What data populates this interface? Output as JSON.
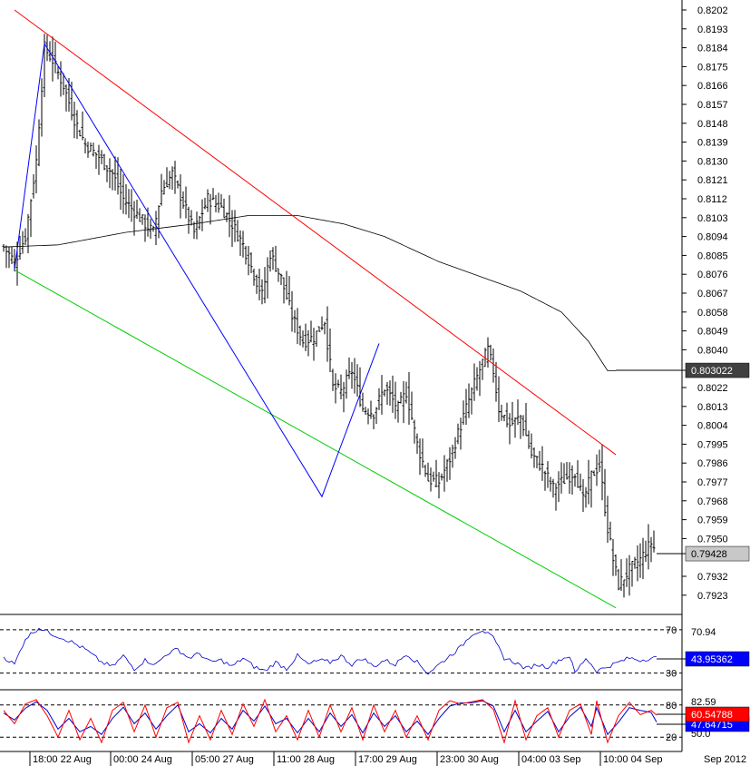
{
  "chart_data": [
    {
      "type": "candlestick",
      "panel": "price",
      "y_ticks": [
        "0.8202",
        "0.8193",
        "0.8184",
        "0.8175",
        "0.8166",
        "0.8157",
        "0.8148",
        "0.8139",
        "0.8130",
        "0.8121",
        "0.8112",
        "0.8103",
        "0.8094",
        "0.8085",
        "0.8076",
        "0.8067",
        "0.8058",
        "0.8049",
        "0.8040",
        "0.8022",
        "0.8013",
        "0.8004",
        "0.7995",
        "0.7986",
        "0.7977",
        "0.7968",
        "0.7959",
        "0.7950",
        "0.7932",
        "0.7923"
      ],
      "ylim": [
        0.7916,
        0.8207
      ],
      "x_ticks": [
        "18:00 22 Aug",
        "00:00 24 Aug",
        "05:00 27 Aug",
        "11:00 28 Aug",
        "17:00 29 Aug",
        "23:00 30 Aug",
        "04:00 03 Sep",
        "10:00 04 Sep"
      ],
      "x_corner_label": "Sep 2012",
      "ma_value_label": "0.803022",
      "price_value_label": "0.79428",
      "bar_count": 240,
      "close_keypoints": [
        [
          0,
          0.8089
        ],
        [
          4,
          0.8082
        ],
        [
          8,
          0.8094
        ],
        [
          12,
          0.813
        ],
        [
          15,
          0.8184
        ],
        [
          18,
          0.8178
        ],
        [
          22,
          0.8166
        ],
        [
          26,
          0.815
        ],
        [
          30,
          0.8138
        ],
        [
          35,
          0.8132
        ],
        [
          40,
          0.8124
        ],
        [
          44,
          0.8112
        ],
        [
          48,
          0.8106
        ],
        [
          52,
          0.81
        ],
        [
          55,
          0.8096
        ],
        [
          58,
          0.8116
        ],
        [
          62,
          0.8124
        ],
        [
          66,
          0.811
        ],
        [
          70,
          0.8096
        ],
        [
          75,
          0.8112
        ],
        [
          80,
          0.8108
        ],
        [
          84,
          0.81
        ],
        [
          88,
          0.809
        ],
        [
          92,
          0.8076
        ],
        [
          95,
          0.8066
        ],
        [
          98,
          0.8086
        ],
        [
          102,
          0.8074
        ],
        [
          106,
          0.8056
        ],
        [
          110,
          0.8044
        ],
        [
          114,
          0.8046
        ],
        [
          118,
          0.8054
        ],
        [
          121,
          0.8022
        ],
        [
          124,
          0.802
        ],
        [
          128,
          0.803
        ],
        [
          132,
          0.8012
        ],
        [
          136,
          0.801
        ],
        [
          140,
          0.8022
        ],
        [
          145,
          0.8012
        ],
        [
          148,
          0.802
        ],
        [
          152,
          0.7995
        ],
        [
          156,
          0.7978
        ],
        [
          160,
          0.7977
        ],
        [
          164,
          0.7988
        ],
        [
          168,
          0.8004
        ],
        [
          172,
          0.802
        ],
        [
          176,
          0.8034
        ],
        [
          178,
          0.804
        ],
        [
          180,
          0.803
        ],
        [
          182,
          0.8012
        ],
        [
          186,
          0.8004
        ],
        [
          190,
          0.8008
        ],
        [
          194,
          0.799
        ],
        [
          198,
          0.7984
        ],
        [
          202,
          0.7974
        ],
        [
          206,
          0.7978
        ],
        [
          210,
          0.7982
        ],
        [
          213,
          0.7968
        ],
        [
          216,
          0.798
        ],
        [
          219,
          0.7985
        ],
        [
          222,
          0.7955
        ],
        [
          224,
          0.794
        ],
        [
          226,
          0.7928
        ],
        [
          230,
          0.7935
        ],
        [
          234,
          0.794
        ],
        [
          238,
          0.7948
        ],
        [
          240,
          0.7943
        ]
      ],
      "moving_average": [
        [
          0,
          0.8089
        ],
        [
          20,
          0.809
        ],
        [
          45,
          0.8096
        ],
        [
          70,
          0.81
        ],
        [
          90,
          0.8104
        ],
        [
          108,
          0.8104
        ],
        [
          125,
          0.81
        ],
        [
          140,
          0.8094
        ],
        [
          160,
          0.8082
        ],
        [
          175,
          0.8075
        ],
        [
          190,
          0.8068
        ],
        [
          205,
          0.8058
        ],
        [
          215,
          0.8044
        ],
        [
          222,
          0.803
        ],
        [
          225,
          0.803
        ]
      ],
      "channel_upper": [
        [
          4,
          0.8202
        ],
        [
          225,
          0.799
        ]
      ],
      "channel_lower": [
        [
          4,
          0.8078
        ],
        [
          225,
          0.7917
        ]
      ],
      "zigzag": [
        [
          4,
          0.8078
        ],
        [
          15,
          0.8186
        ],
        [
          117,
          0.797
        ],
        [
          138,
          0.8043
        ]
      ],
      "colors": {
        "upper_channel": "#ff0000",
        "lower_channel": "#00cc00",
        "zigzag": "#0000ff",
        "moving_average": "#000000",
        "bars": "#000000",
        "ma_box": "#404040",
        "price_box": "#c8c8c8"
      }
    },
    {
      "type": "line",
      "panel": "rsi",
      "levels": [
        "70",
        "30"
      ],
      "level_values": [
        70,
        30
      ],
      "ylim": [
        18,
        80
      ],
      "max_label": "70.94",
      "value_label": "43.95362",
      "keypoints": [
        [
          0,
          45
        ],
        [
          4,
          38
        ],
        [
          8,
          62
        ],
        [
          13,
          72
        ],
        [
          18,
          66
        ],
        [
          24,
          60
        ],
        [
          30,
          52
        ],
        [
          36,
          40
        ],
        [
          40,
          36
        ],
        [
          44,
          46
        ],
        [
          48,
          34
        ],
        [
          52,
          42
        ],
        [
          56,
          38
        ],
        [
          60,
          48
        ],
        [
          64,
          52
        ],
        [
          68,
          44
        ],
        [
          72,
          48
        ],
        [
          76,
          40
        ],
        [
          80,
          42
        ],
        [
          84,
          36
        ],
        [
          88,
          44
        ],
        [
          92,
          36
        ],
        [
          96,
          32
        ],
        [
          100,
          40
        ],
        [
          104,
          34
        ],
        [
          108,
          46
        ],
        [
          112,
          38
        ],
        [
          116,
          42
        ],
        [
          120,
          40
        ],
        [
          124,
          46
        ],
        [
          128,
          38
        ],
        [
          132,
          44
        ],
        [
          136,
          36
        ],
        [
          140,
          42
        ],
        [
          144,
          38
        ],
        [
          148,
          48
        ],
        [
          152,
          40
        ],
        [
          156,
          30
        ],
        [
          160,
          38
        ],
        [
          164,
          46
        ],
        [
          168,
          54
        ],
        [
          172,
          66
        ],
        [
          176,
          70
        ],
        [
          180,
          62
        ],
        [
          184,
          44
        ],
        [
          188,
          40
        ],
        [
          192,
          34
        ],
        [
          196,
          38
        ],
        [
          200,
          36
        ],
        [
          204,
          42
        ],
        [
          208,
          46
        ],
        [
          210,
          30
        ],
        [
          214,
          44
        ],
        [
          218,
          32
        ],
        [
          222,
          36
        ],
        [
          226,
          40
        ],
        [
          230,
          44
        ],
        [
          234,
          42
        ],
        [
          238,
          44
        ],
        [
          240,
          44
        ]
      ],
      "color": "#0000cc",
      "value_box_color": "#0000ff"
    },
    {
      "type": "line",
      "panel": "stochastic",
      "levels": [
        "80",
        "20"
      ],
      "level_values": [
        80,
        20
      ],
      "ylim": [
        0,
        100
      ],
      "max_label": "82.59",
      "level_hidden_label": "50.0",
      "k_value_label": "60.54788",
      "d_value_label": "47.64715",
      "k_keypoints": [
        [
          0,
          70
        ],
        [
          4,
          45
        ],
        [
          8,
          82
        ],
        [
          12,
          90
        ],
        [
          16,
          60
        ],
        [
          20,
          20
        ],
        [
          24,
          70
        ],
        [
          28,
          15
        ],
        [
          32,
          55
        ],
        [
          36,
          10
        ],
        [
          40,
          70
        ],
        [
          44,
          85
        ],
        [
          48,
          30
        ],
        [
          52,
          80
        ],
        [
          56,
          20
        ],
        [
          60,
          75
        ],
        [
          64,
          85
        ],
        [
          68,
          10
        ],
        [
          72,
          60
        ],
        [
          76,
          15
        ],
        [
          80,
          70
        ],
        [
          84,
          25
        ],
        [
          88,
          82
        ],
        [
          92,
          40
        ],
        [
          96,
          90
        ],
        [
          100,
          30
        ],
        [
          104,
          60
        ],
        [
          108,
          15
        ],
        [
          112,
          70
        ],
        [
          116,
          20
        ],
        [
          120,
          80
        ],
        [
          124,
          30
        ],
        [
          128,
          75
        ],
        [
          132,
          15
        ],
        [
          136,
          80
        ],
        [
          140,
          30
        ],
        [
          144,
          70
        ],
        [
          148,
          20
        ],
        [
          152,
          60
        ],
        [
          156,
          15
        ],
        [
          160,
          70
        ],
        [
          164,
          88
        ],
        [
          168,
          82
        ],
        [
          172,
          86
        ],
        [
          176,
          90
        ],
        [
          180,
          72
        ],
        [
          184,
          10
        ],
        [
          188,
          88
        ],
        [
          192,
          15
        ],
        [
          196,
          60
        ],
        [
          200,
          75
        ],
        [
          204,
          20
        ],
        [
          208,
          70
        ],
        [
          212,
          82
        ],
        [
          216,
          25
        ],
        [
          218,
          88
        ],
        [
          222,
          10
        ],
        [
          226,
          60
        ],
        [
          230,
          85
        ],
        [
          234,
          62
        ],
        [
          238,
          70
        ],
        [
          240,
          61
        ]
      ],
      "d_keypoints": [
        [
          0,
          65
        ],
        [
          4,
          52
        ],
        [
          8,
          74
        ],
        [
          12,
          86
        ],
        [
          16,
          70
        ],
        [
          20,
          35
        ],
        [
          24,
          55
        ],
        [
          28,
          30
        ],
        [
          32,
          40
        ],
        [
          36,
          25
        ],
        [
          40,
          55
        ],
        [
          44,
          76
        ],
        [
          48,
          45
        ],
        [
          52,
          65
        ],
        [
          56,
          35
        ],
        [
          60,
          60
        ],
        [
          64,
          80
        ],
        [
          68,
          30
        ],
        [
          72,
          45
        ],
        [
          76,
          28
        ],
        [
          80,
          55
        ],
        [
          84,
          35
        ],
        [
          88,
          70
        ],
        [
          92,
          50
        ],
        [
          96,
          78
        ],
        [
          100,
          45
        ],
        [
          104,
          55
        ],
        [
          108,
          28
        ],
        [
          112,
          55
        ],
        [
          116,
          30
        ],
        [
          120,
          65
        ],
        [
          124,
          40
        ],
        [
          128,
          62
        ],
        [
          132,
          28
        ],
        [
          136,
          65
        ],
        [
          140,
          40
        ],
        [
          144,
          60
        ],
        [
          148,
          30
        ],
        [
          152,
          50
        ],
        [
          156,
          25
        ],
        [
          160,
          55
        ],
        [
          164,
          78
        ],
        [
          168,
          84
        ],
        [
          172,
          84
        ],
        [
          176,
          88
        ],
        [
          180,
          78
        ],
        [
          184,
          30
        ],
        [
          188,
          70
        ],
        [
          192,
          30
        ],
        [
          196,
          50
        ],
        [
          200,
          68
        ],
        [
          204,
          30
        ],
        [
          208,
          58
        ],
        [
          212,
          76
        ],
        [
          216,
          40
        ],
        [
          218,
          75
        ],
        [
          222,
          25
        ],
        [
          226,
          48
        ],
        [
          230,
          75
        ],
        [
          234,
          70
        ],
        [
          238,
          66
        ],
        [
          240,
          48
        ]
      ],
      "k_color": "#ff0000",
      "d_color": "#0000cc",
      "k_box_color": "#ff0000",
      "d_box_color": "#0000ff"
    }
  ]
}
